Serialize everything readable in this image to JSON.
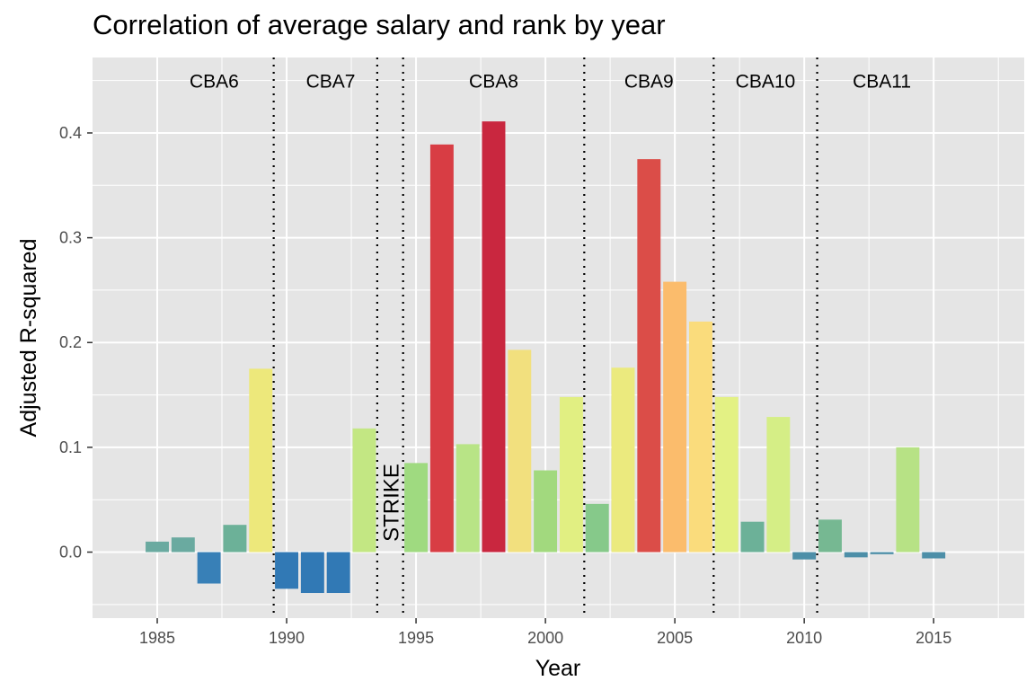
{
  "chart_data": {
    "type": "bar",
    "title": "Correlation of average salary and rank by year",
    "xlabel": "Year",
    "ylabel": "Adjusted R-squared",
    "x_ticks": [
      1985,
      1990,
      1995,
      2000,
      2005,
      2010,
      2015
    ],
    "x_tick_labels": [
      "1985",
      "1990",
      "1995",
      "2000",
      "2005",
      "2010",
      "2015"
    ],
    "y_ticks": [
      0.0,
      0.1,
      0.2,
      0.3,
      0.4
    ],
    "y_tick_labels": [
      "0.0",
      "0.1",
      "0.2",
      "0.3",
      "0.4"
    ],
    "xlim": [
      1982.5,
      1818.5
    ],
    "ylim": [
      -0.063,
      0.472
    ],
    "grid": true,
    "legend": "none",
    "bars": [
      {
        "year": 1985,
        "value": 0.01,
        "color": "#6aaaa0"
      },
      {
        "year": 1986,
        "value": 0.014,
        "color": "#6aaaa0"
      },
      {
        "year": 1987,
        "value": -0.03,
        "color": "#3880b7"
      },
      {
        "year": 1988,
        "value": 0.026,
        "color": "#6cb198"
      },
      {
        "year": 1989,
        "value": 0.175,
        "color": "#ede87b"
      },
      {
        "year": 1990,
        "value": -0.035,
        "color": "#3179b5"
      },
      {
        "year": 1991,
        "value": -0.039,
        "color": "#3179b5"
      },
      {
        "year": 1992,
        "value": -0.039,
        "color": "#3179b5"
      },
      {
        "year": 1993,
        "value": 0.118,
        "color": "#c3e783"
      },
      {
        "year": 1995,
        "value": 0.085,
        "color": "#9fda80"
      },
      {
        "year": 1996,
        "value": 0.389,
        "color": "#d83d44"
      },
      {
        "year": 1997,
        "value": 0.103,
        "color": "#b8e486"
      },
      {
        "year": 1998,
        "value": 0.411,
        "color": "#c9273f"
      },
      {
        "year": 1999,
        "value": 0.193,
        "color": "#f2e07e"
      },
      {
        "year": 2000,
        "value": 0.078,
        "color": "#a2d97e"
      },
      {
        "year": 2001,
        "value": 0.148,
        "color": "#e1ef82"
      },
      {
        "year": 2002,
        "value": 0.046,
        "color": "#86c98a"
      },
      {
        "year": 2003,
        "value": 0.176,
        "color": "#ebea7e"
      },
      {
        "year": 2004,
        "value": 0.375,
        "color": "#db4d48"
      },
      {
        "year": 2005,
        "value": 0.258,
        "color": "#fbbc6c"
      },
      {
        "year": 2006,
        "value": 0.22,
        "color": "#fadc7c"
      },
      {
        "year": 2007,
        "value": 0.148,
        "color": "#e3f184"
      },
      {
        "year": 2008,
        "value": 0.029,
        "color": "#6cb198"
      },
      {
        "year": 2009,
        "value": 0.129,
        "color": "#d5ee86"
      },
      {
        "year": 2010,
        "value": -0.007,
        "color": "#4d8fa8"
      },
      {
        "year": 2011,
        "value": 0.031,
        "color": "#76b892"
      },
      {
        "year": 2012,
        "value": -0.005,
        "color": "#4d8fa8"
      },
      {
        "year": 2013,
        "value": -0.002,
        "color": "#4d8fa8"
      },
      {
        "year": 2014,
        "value": 0.1,
        "color": "#b7e285"
      },
      {
        "year": 2015,
        "value": -0.006,
        "color": "#4d8fa8"
      }
    ],
    "dividers": [
      1989.5,
      1993.5,
      1994.5,
      2001.5,
      2006.5,
      2010.5
    ],
    "eras": [
      {
        "label": "CBA6",
        "x": 1987.2
      },
      {
        "label": "CBA7",
        "x": 1991.7
      },
      {
        "label": "CBA8",
        "x": 1998.0
      },
      {
        "label": "CBA9",
        "x": 2004.0
      },
      {
        "label": "CBA10",
        "x": 2008.5
      },
      {
        "label": "CBA11",
        "x": 2013.0
      }
    ],
    "era_label_y": 0.45,
    "strike": {
      "label": "STRIKE",
      "x": 1994.0,
      "y": 0.01
    }
  },
  "colors": {
    "panel_background": "#e5e5e5",
    "grid": "#ffffff",
    "divider": "#000000"
  }
}
